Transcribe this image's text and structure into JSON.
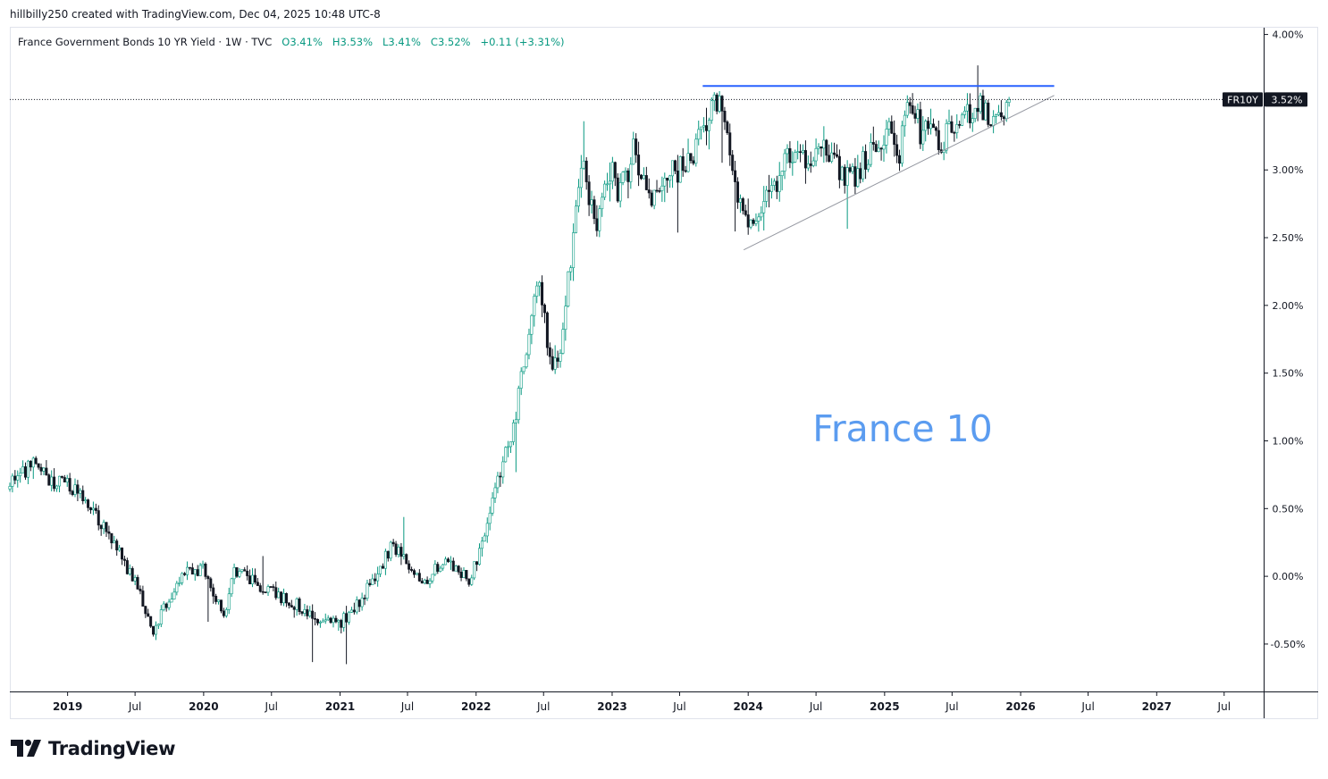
{
  "header": {
    "created_by": "hillbilly250 created with TradingView.com, Dec 04, 2025 10:48 UTC-8"
  },
  "legend": {
    "symbol": "France Government Bonds 10 YR Yield · 1W · TVC",
    "open": "O3.41%",
    "high": "H3.53%",
    "low": "L3.41%",
    "close": "C3.52%",
    "change": "+0.11 (+3.31%)"
  },
  "price_tag": {
    "ticker": "FR10Y",
    "value": "3.52%",
    "bg_color": "#131722"
  },
  "annotation": {
    "text": "France 10",
    "color": "#5b9cf0"
  },
  "logo": {
    "icon": "tradingview-logo-icon",
    "word": "TradingView"
  },
  "colors": {
    "up_candle": "#089981",
    "down_candle": "#131722",
    "resistance_line": "#2962ff",
    "support_line": "#9598a1",
    "axis_text": "#131722",
    "grid_frame": "#e0e3eb"
  },
  "chart_data": {
    "type": "candlestick",
    "title": "France Government Bonds 10 YR Yield",
    "interval": "1W",
    "source": "TVC",
    "last_close": 3.52,
    "ylim": [
      -0.85,
      4.05
    ],
    "y_ticks": [
      "4.00%",
      "3.50%",
      "3.00%",
      "2.50%",
      "2.00%",
      "1.50%",
      "1.00%",
      "0.50%",
      "0.00%",
      "-0.50%"
    ],
    "y_tick_values": [
      4.0,
      3.5,
      3.0,
      2.5,
      2.0,
      1.5,
      1.0,
      0.5,
      0.0,
      -0.5
    ],
    "xlim": [
      "2018-07-30",
      "2027-10-15"
    ],
    "x_ticks": [
      "2019",
      "Jul",
      "2020",
      "Jul",
      "2021",
      "Jul",
      "2022",
      "Jul",
      "2023",
      "Jul",
      "2024",
      "Jul",
      "2025",
      "Jul",
      "2026",
      "Jul",
      "2027",
      "Jul"
    ],
    "x_tick_dates": [
      "2019-01-01",
      "2019-07-01",
      "2020-01-01",
      "2020-07-01",
      "2021-01-01",
      "2021-07-01",
      "2022-01-01",
      "2022-07-01",
      "2023-01-01",
      "2023-07-01",
      "2024-01-01",
      "2024-07-01",
      "2025-01-01",
      "2025-07-01",
      "2026-01-01",
      "2026-07-01",
      "2027-01-01",
      "2027-07-01"
    ],
    "price_path": [
      [
        "2018-07-30",
        0.68
      ],
      [
        "2018-10-01",
        0.85
      ],
      [
        "2018-11-15",
        0.7
      ],
      [
        "2019-01-01",
        0.7
      ],
      [
        "2019-02-15",
        0.55
      ],
      [
        "2019-04-01",
        0.38
      ],
      [
        "2019-05-15",
        0.2
      ],
      [
        "2019-07-01",
        -0.05
      ],
      [
        "2019-08-20",
        -0.4
      ],
      [
        "2019-10-01",
        -0.15
      ],
      [
        "2019-11-15",
        0.02
      ],
      [
        "2020-01-01",
        0.05
      ],
      [
        "2020-02-25",
        -0.28
      ],
      [
        "2020-03-20",
        0.05
      ],
      [
        "2020-05-01",
        -0.02
      ],
      [
        "2020-07-01",
        -0.12
      ],
      [
        "2020-09-01",
        -0.2
      ],
      [
        "2020-11-01",
        -0.33
      ],
      [
        "2021-01-01",
        -0.35
      ],
      [
        "2021-02-15",
        -0.22
      ],
      [
        "2021-03-25",
        -0.05
      ],
      [
        "2021-05-20",
        0.22
      ],
      [
        "2021-07-01",
        0.1
      ],
      [
        "2021-08-10",
        -0.08
      ],
      [
        "2021-10-01",
        0.12
      ],
      [
        "2021-11-01",
        0.08
      ],
      [
        "2021-12-15",
        -0.02
      ],
      [
        "2022-01-10",
        0.18
      ],
      [
        "2022-03-01",
        0.72
      ],
      [
        "2022-04-15",
        1.15
      ],
      [
        "2022-06-15",
        2.25
      ],
      [
        "2022-07-20",
        1.55
      ],
      [
        "2022-08-10",
        1.6
      ],
      [
        "2022-09-20",
        2.55
      ],
      [
        "2022-10-15",
        3.0
      ],
      [
        "2022-11-20",
        2.55
      ],
      [
        "2022-12-30",
        3.0
      ],
      [
        "2023-01-20",
        2.8
      ],
      [
        "2023-03-01",
        3.15
      ],
      [
        "2023-04-10",
        2.75
      ],
      [
        "2023-05-20",
        2.95
      ],
      [
        "2023-07-01",
        3.0
      ],
      [
        "2023-08-20",
        3.2
      ],
      [
        "2023-10-10",
        3.52
      ],
      [
        "2023-11-10",
        3.2
      ],
      [
        "2023-12-15",
        2.7
      ],
      [
        "2024-01-01",
        2.55
      ],
      [
        "2024-02-01",
        2.75
      ],
      [
        "2024-03-10",
        2.9
      ],
      [
        "2024-04-30",
        3.15
      ],
      [
        "2024-06-10",
        3.1
      ],
      [
        "2024-07-05",
        3.22
      ],
      [
        "2024-08-10",
        3.05
      ],
      [
        "2024-09-20",
        2.95
      ],
      [
        "2024-10-15",
        2.98
      ],
      [
        "2024-11-25",
        3.15
      ],
      [
        "2025-01-01",
        3.2
      ],
      [
        "2025-01-20",
        3.3
      ],
      [
        "2025-02-10",
        3.15
      ],
      [
        "2025-03-12",
        3.5
      ],
      [
        "2025-04-05",
        3.3
      ],
      [
        "2025-05-01",
        3.25
      ],
      [
        "2025-06-01",
        3.18
      ],
      [
        "2025-07-01",
        3.3
      ],
      [
        "2025-08-01",
        3.38
      ],
      [
        "2025-09-10",
        3.52
      ],
      [
        "2025-10-10",
        3.38
      ],
      [
        "2025-11-01",
        3.4
      ],
      [
        "2025-12-04",
        3.52
      ]
    ],
    "annotations": [
      {
        "kind": "horizontal",
        "from": "2023-09-01",
        "to": "2026-04-01",
        "value": 3.62,
        "color": "#2962ff"
      },
      {
        "kind": "trendline",
        "from": [
          "2023-12-20",
          2.41
        ],
        "to": [
          "2026-04-01",
          3.55
        ],
        "color": "#9598a1"
      }
    ],
    "grid": false,
    "legend": "top-left"
  }
}
